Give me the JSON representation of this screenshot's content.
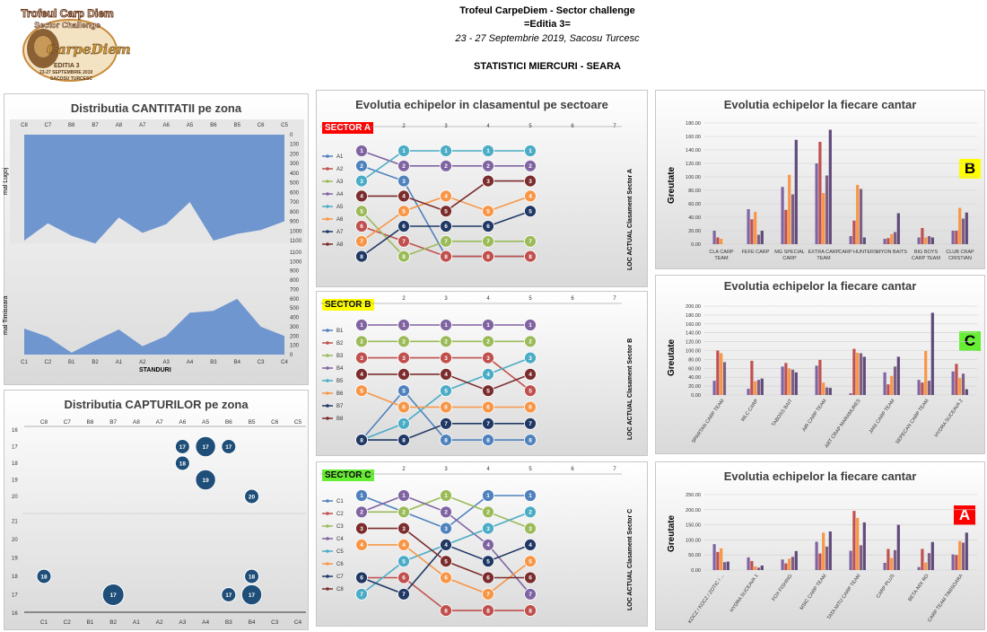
{
  "header": {
    "line1": "Trofeul CarpeDiem - Sector challenge",
    "line2": "=Editia 3=",
    "line3": "23 - 27 Septembrie 2019, Sacosu Turcesc",
    "line4": "STATISTICI MIERCURI - SEARA"
  },
  "logo": {
    "arc_top": "Trofeul Carp Diem",
    "arc_mid": "Sector Challenge",
    "script": "CarpeDiem",
    "edition": "EDITIA 3",
    "dates": "23-27 SEPTEMBRIE 2019",
    "place": "SACOSU TURCESC"
  },
  "colors": {
    "area": "#6f96cf",
    "bubble": "#1f4e79",
    "sectorA": "#ff0000",
    "sectorB": "#ffff00",
    "sectorC": "#66ee33",
    "barSeries": [
      "#8064a2",
      "#c0504d",
      "#f79646",
      "#4f81bd",
      "#7f6084",
      "#9b4a6e",
      "#e6a07a",
      "#604a7b"
    ]
  },
  "area_panel": {
    "title": "Distributia CANTITATII pe zona",
    "top_label": "mal Lugoj",
    "bottom_label": "mal Timisoara",
    "xlabel": "STANDURI",
    "top_yticks": [
      "0",
      "100",
      "200",
      "300",
      "400",
      "500",
      "600",
      "700",
      "800",
      "900",
      "1000",
      "1100"
    ],
    "bottom_yticks": [
      "1100",
      "1000",
      "900",
      "800",
      "700",
      "600",
      "500",
      "400",
      "300",
      "200",
      "100",
      "0"
    ]
  },
  "bubble_panel": {
    "title": "Distributia CAPTURILOR pe zona",
    "top_yticks": [
      "16",
      "17",
      "18",
      "19",
      "20"
    ],
    "bottom_yticks": [
      "21",
      "20",
      "19",
      "18",
      "17",
      "16"
    ]
  },
  "rank_panel": {
    "title": "Evolutia echipelor in clasamentul pe sectoare",
    "steps": [
      "2",
      "3",
      "4",
      "5",
      "6",
      "7"
    ],
    "sectors": [
      {
        "name": "SECTOR A",
        "side": "LOC ACTUAL Clasament Sector A",
        "legend": [
          "A1",
          "A2",
          "A3",
          "A4",
          "A5",
          "A6",
          "A7",
          "A8"
        ]
      },
      {
        "name": "SECTOR B",
        "side": "LOC ACTUAL Clasament Sector B",
        "legend": [
          "B1",
          "B2",
          "B3",
          "B4",
          "B5",
          "B6",
          "B7",
          "B8"
        ]
      },
      {
        "name": "SECTOR C",
        "side": "LOC ACTUAL Clasament Sector C",
        "legend": [
          "C1",
          "C2",
          "C3",
          "C4",
          "C5",
          "C6",
          "C7",
          "C8"
        ]
      }
    ]
  },
  "bar_panels": [
    {
      "title": "Evolutia echipelor la fiecare cantar",
      "badge": "B",
      "ylabel": "Greutate"
    },
    {
      "title": "Evolutia echipelor la fiecare cantar",
      "badge": "C",
      "ylabel": "Greutate"
    },
    {
      "title": "Evolutia echipelor la fiecare cantar",
      "badge": "A",
      "ylabel": "Greutate"
    }
  ],
  "chart_data": [
    {
      "type": "area",
      "title": "Distributia CANTITATII pe zona",
      "ylabel": "mal Lugoj",
      "categories": [
        "C8",
        "C7",
        "B8",
        "B7",
        "A8",
        "A7",
        "A6",
        "A5",
        "B6",
        "B5",
        "C6",
        "C5"
      ],
      "values": [
        1100,
        920,
        1050,
        1130,
        860,
        1020,
        930,
        700,
        1100,
        1030,
        990,
        900
      ],
      "ylim": [
        0,
        1100
      ],
      "y_inverted": true
    },
    {
      "type": "area",
      "ylabel": "mal Timisoara",
      "xlabel": "STANDURI",
      "categories": [
        "C1",
        "C2",
        "B1",
        "B2",
        "A1",
        "A2",
        "A3",
        "A4",
        "B3",
        "B4",
        "C3",
        "C4"
      ],
      "values": [
        280,
        190,
        20,
        150,
        270,
        90,
        200,
        450,
        470,
        600,
        300,
        200
      ],
      "ylim": [
        0,
        1100
      ]
    },
    {
      "type": "scatter",
      "title": "Distributia CAPTURILOR pe zona",
      "categories": [
        "C8",
        "C7",
        "B8",
        "B7",
        "A8",
        "A7",
        "A6",
        "A5",
        "B6",
        "B5",
        "C6",
        "C5"
      ],
      "points": [
        {
          "x": "A6",
          "y": 17,
          "label": "17",
          "size": 1
        },
        {
          "x": "A5",
          "y": 17,
          "label": "17",
          "size": 1.4
        },
        {
          "x": "B6",
          "y": 17,
          "label": "17",
          "size": 1
        },
        {
          "x": "A6",
          "y": 18,
          "label": "18",
          "size": 1
        },
        {
          "x": "A5",
          "y": 19,
          "label": "19",
          "size": 1.4
        },
        {
          "x": "B5",
          "y": 20,
          "label": "20",
          "size": 1
        }
      ],
      "ylim": [
        16,
        20
      ]
    },
    {
      "type": "scatter",
      "categories": [
        "C1",
        "C2",
        "B1",
        "B2",
        "A1",
        "A2",
        "A3",
        "A4",
        "B3",
        "B4",
        "C3",
        "C4"
      ],
      "points": [
        {
          "x": "C1",
          "y": 18,
          "label": "18",
          "size": 1
        },
        {
          "x": "B2",
          "y": 17,
          "label": "17",
          "size": 1.5
        },
        {
          "x": "B3",
          "y": 17,
          "label": "17",
          "size": 1
        },
        {
          "x": "B4",
          "y": 18,
          "label": "18",
          "size": 1
        },
        {
          "x": "B4",
          "y": 17,
          "label": "17",
          "size": 1.4
        }
      ],
      "ylim": [
        16,
        21
      ]
    },
    {
      "type": "line",
      "title": "SECTOR A",
      "series": [
        {
          "name": "A1",
          "values": [
            2,
            3,
            8,
            8,
            8
          ]
        },
        {
          "name": "A2",
          "values": [
            6,
            7,
            8,
            8,
            8
          ]
        },
        {
          "name": "A3",
          "values": [
            5,
            8,
            7,
            7,
            7
          ]
        },
        {
          "name": "A4",
          "values": [
            1,
            2,
            2,
            2,
            2
          ]
        },
        {
          "name": "A5",
          "values": [
            3,
            1,
            1,
            1,
            1
          ]
        },
        {
          "name": "A6",
          "values": [
            7,
            5,
            4,
            5,
            4
          ]
        },
        {
          "name": "A7",
          "values": [
            8,
            6,
            6,
            6,
            5
          ]
        },
        {
          "name": "A8",
          "values": [
            4,
            4,
            5,
            3,
            3
          ]
        }
      ],
      "ylim": [
        1,
        8
      ]
    },
    {
      "type": "line",
      "title": "SECTOR B",
      "series": [
        {
          "name": "B1",
          "values": [
            8,
            5,
            8,
            8,
            8
          ]
        },
        {
          "name": "B2",
          "values": [
            3,
            3,
            3,
            3,
            5
          ]
        },
        {
          "name": "B3",
          "values": [
            2,
            2,
            2,
            2,
            2
          ]
        },
        {
          "name": "B4",
          "values": [
            1,
            1,
            1,
            1,
            1
          ]
        },
        {
          "name": "B5",
          "values": [
            8,
            7,
            5,
            4,
            3
          ]
        },
        {
          "name": "B6",
          "values": [
            5,
            6,
            6,
            6,
            6
          ]
        },
        {
          "name": "B7",
          "values": [
            8,
            8,
            7,
            7,
            7
          ]
        },
        {
          "name": "B8",
          "values": [
            4,
            4,
            4,
            5,
            4
          ]
        }
      ],
      "ylim": [
        1,
        8
      ]
    },
    {
      "type": "line",
      "title": "SECTOR C",
      "series": [
        {
          "name": "C1",
          "values": [
            1,
            2,
            3,
            1,
            1
          ]
        },
        {
          "name": "C2",
          "values": [
            6,
            6,
            8,
            8,
            8
          ]
        },
        {
          "name": "C3",
          "values": [
            2,
            2,
            1,
            2,
            3
          ]
        },
        {
          "name": "C4",
          "values": [
            2,
            1,
            2,
            4,
            7
          ]
        },
        {
          "name": "C5",
          "values": [
            7,
            5,
            4,
            3,
            2
          ]
        },
        {
          "name": "C6",
          "values": [
            4,
            4,
            6,
            7,
            5
          ]
        },
        {
          "name": "C7",
          "values": [
            6,
            7,
            4,
            5,
            4
          ]
        },
        {
          "name": "C8",
          "values": [
            3,
            3,
            5,
            6,
            6
          ]
        }
      ],
      "ylim": [
        1,
        8
      ]
    },
    {
      "type": "bar",
      "title": "Evolutia echipelor la fiecare cantar",
      "ylabel": "Greutate",
      "categories": [
        "CLA CARP TEAM",
        "FEFE CARP",
        "MG SPECIAL CARP",
        "EXTRA CARP TEAM",
        "CARP HUNTERS",
        "MYON BAITS",
        "BIG BOYS CARP TEAM",
        "CLUB CRAP CRISTIAN"
      ],
      "series": [
        {
          "values": [
            20,
            52,
            85,
            120,
            12,
            8,
            10,
            20
          ]
        },
        {
          "values": [
            10,
            37,
            51,
            152,
            35,
            9,
            24,
            20
          ]
        },
        {
          "values": [
            8,
            48,
            103,
            76,
            88,
            15,
            10,
            54
          ]
        },
        {
          "values": [
            0,
            14,
            74,
            102,
            82,
            18,
            12,
            38
          ]
        },
        {
          "values": [
            0,
            20,
            155,
            170,
            10,
            46,
            10,
            47
          ]
        }
      ],
      "ylim": [
        0,
        180
      ]
    },
    {
      "type": "bar",
      "title": "Evolutia echipelor la fiecare cantar",
      "ylabel": "Greutate",
      "categories": [
        "SPARTAN CARP TEAM",
        "WLC CARP",
        "TABOSS BAIT",
        "AIR CARP TEAM",
        "ART CRAP MARAMURES",
        "JANI CARP TEAM",
        "SEPECAN CARP TEAM",
        "HYDRA SUCEAVA 2"
      ],
      "series": [
        {
          "values": [
            32,
            14,
            64,
            66,
            4,
            51,
            34,
            53
          ]
        },
        {
          "values": [
            100,
            77,
            72,
            79,
            104,
            24,
            28,
            70
          ]
        },
        {
          "values": [
            94,
            31,
            60,
            28,
            95,
            43,
            99,
            38
          ]
        },
        {
          "values": [
            74,
            34,
            57,
            17,
            94,
            64,
            32,
            48
          ]
        },
        {
          "values": [
            0,
            37,
            51,
            16,
            86,
            86,
            185,
            13
          ]
        }
      ],
      "ylim": [
        0,
        200
      ]
    },
    {
      "type": "bar",
      "title": "Evolutia echipelor la fiecare cantar",
      "ylabel": "Greutate",
      "categories": [
        "KOCZ / KOCZ / ZOTIC / ...",
        "HYDRA SUCEAVA 1",
        "FOX FISHING",
        "MSIC CARP TEAM",
        "TATA NITU CARP TEAM",
        "CARP PLUS",
        "BETA-MIX RO",
        "CARP TEAM TIMISOARA"
      ],
      "series": [
        {
          "values": [
            86,
            42,
            35,
            94,
            64,
            24,
            10,
            52
          ]
        },
        {
          "values": [
            60,
            30,
            22,
            55,
            196,
            70,
            70,
            50
          ]
        },
        {
          "values": [
            72,
            12,
            38,
            124,
            173,
            40,
            25,
            96
          ]
        },
        {
          "values": [
            26,
            8,
            44,
            78,
            82,
            66,
            56,
            91
          ]
        },
        {
          "values": [
            28,
            15,
            63,
            128,
            158,
            150,
            93,
            124
          ]
        }
      ],
      "ylim": [
        0,
        250
      ]
    }
  ]
}
